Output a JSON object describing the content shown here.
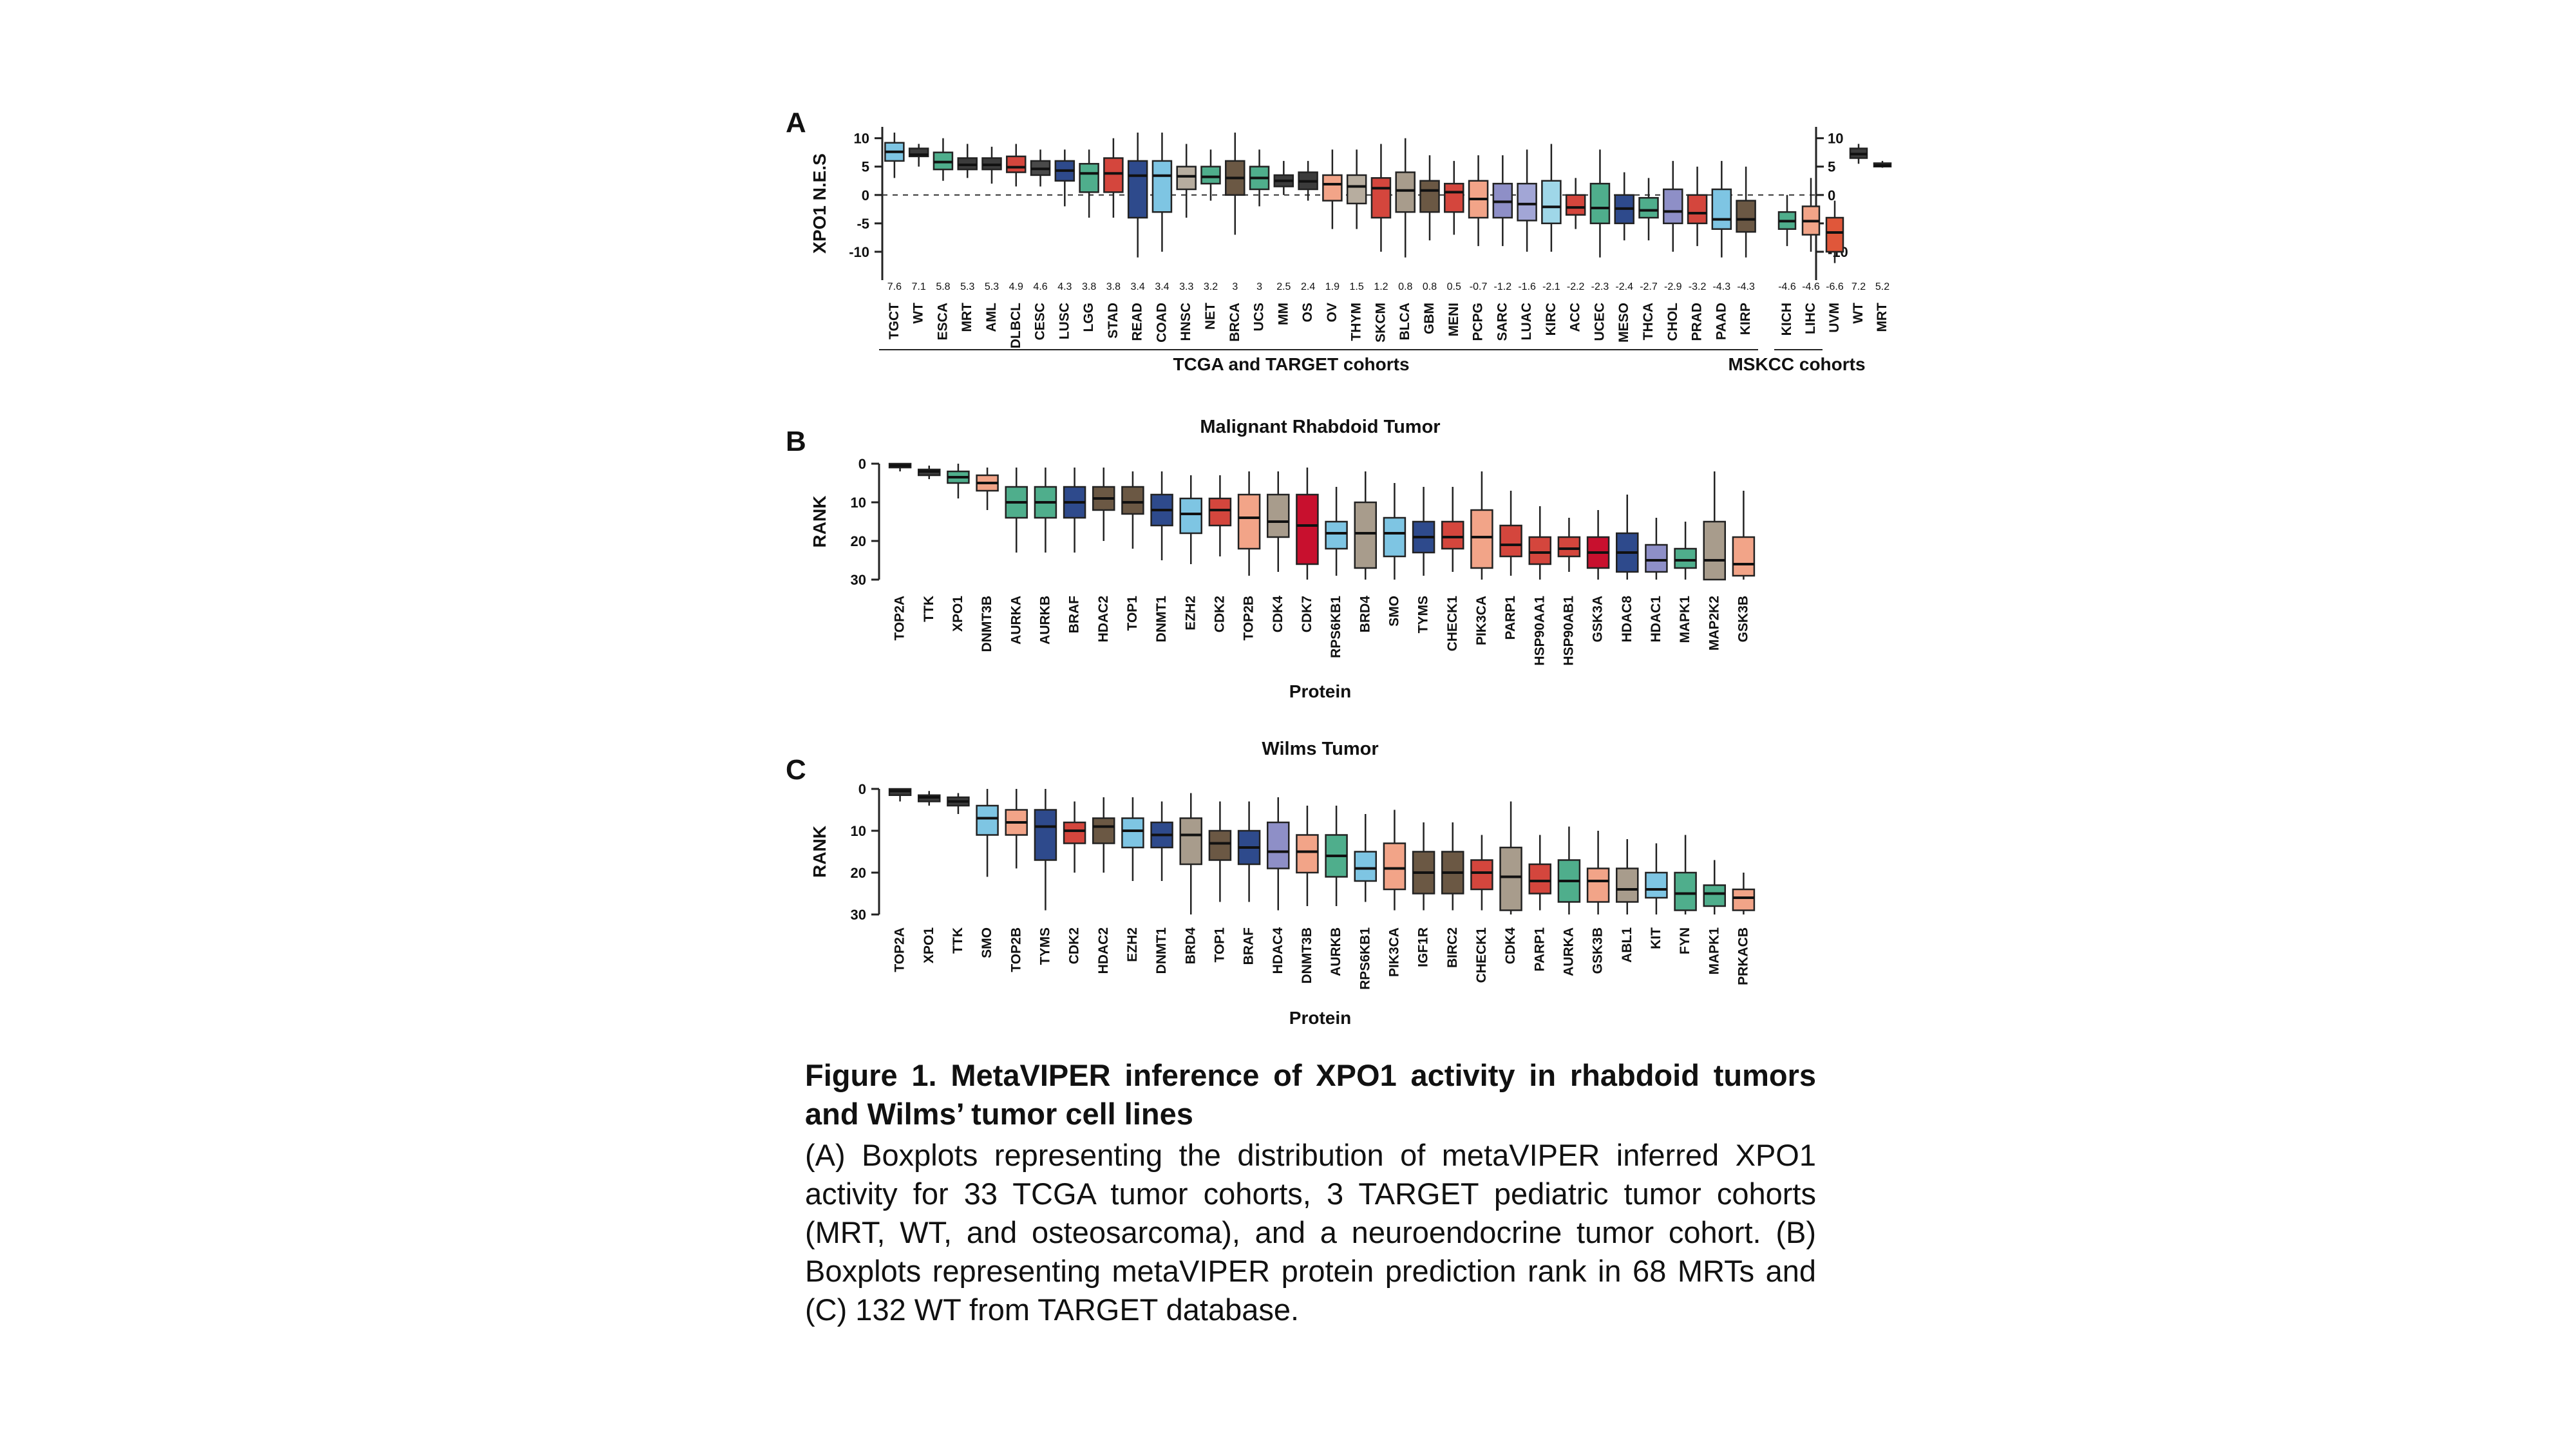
{
  "panels": {
    "A": {
      "letter": "A"
    },
    "B": {
      "letter": "B"
    },
    "C": {
      "letter": "C"
    }
  },
  "chart_data": [
    {
      "panel": "A",
      "type": "box",
      "title": "",
      "ylabel": "XPO1 N.E.S",
      "ylim": [
        -15,
        12
      ],
      "yticks": [
        10,
        5,
        0,
        -5,
        -10
      ],
      "reference_line": 0,
      "groups": [
        {
          "label": "TCGA and TARGET cohorts",
          "count": 36
        },
        {
          "label": "MSKCC cohorts",
          "count": 2
        }
      ],
      "categories": [
        "TGCT",
        "WT",
        "ESCA",
        "MRT",
        "AML",
        "DLBCL",
        "CESC",
        "LUSC",
        "LGG",
        "STAD",
        "READ",
        "COAD",
        "HNSC",
        "NET",
        "BRCA",
        "UCS",
        "MM",
        "OS",
        "OV",
        "THYM",
        "SKCM",
        "BLCA",
        "GBM",
        "MENI",
        "PCPG",
        "SARC",
        "LUAC",
        "KIRC",
        "ACC",
        "UCEC",
        "MESO",
        "THCA",
        "CHOL",
        "PRAD",
        "PAAD",
        "KIRP",
        "KICH",
        "LIHC",
        "UVM",
        "WT",
        "MRT"
      ],
      "medians_label": [
        "7.6",
        "7.1",
        "5.8",
        "5.3",
        "5.3",
        "4.9",
        "4.6",
        "4.3",
        "3.8",
        "3.8",
        "3.4",
        "3.4",
        "3.3",
        "3.2",
        "3",
        "3",
        "2.5",
        "2.4",
        "1.9",
        "1.5",
        "1.2",
        "0.8",
        "0.8",
        "0.5",
        "-0.7",
        "-1.2",
        "-1.6",
        "-2.1",
        "-2.2",
        "-2.3",
        "-2.4",
        "-2.7",
        "-2.9",
        "-3.2",
        "-4.3",
        "-4.3",
        "-4.6",
        "-4.6",
        "-6.6",
        "7.2",
        "5.2"
      ],
      "colors": [
        "#7ec5e3",
        "#3b3b3b",
        "#4fae8c",
        "#3b3b3b",
        "#3b3b3b",
        "#d4463d",
        "#4a4a4a",
        "#2e4a8c",
        "#4fae8c",
        "#d4463d",
        "#2e4a8c",
        "#7ec5e3",
        "#b7ad9f",
        "#4fae8c",
        "#6b5844",
        "#4fae8c",
        "#3b3b3b",
        "#3b3b3b",
        "#f2a488",
        "#b7ad9f",
        "#d4463d",
        "#a89c8c",
        "#6b5844",
        "#d4463d",
        "#f2a488",
        "#8e8fc7",
        "#a2a6d6",
        "#9fd7e8",
        "#d4463d",
        "#4fae8c",
        "#2e4a8c",
        "#4fae8c",
        "#8e8fc7",
        "#d4463d",
        "#7ec5e3",
        "#6b5844",
        "#4fae8c",
        "#f2a488",
        "#e0573a",
        "#3b3b3b",
        "#3b3b3b"
      ],
      "boxes": [
        {
          "q1": 6,
          "median": 7.6,
          "q3": 9.2,
          "wlo": 3,
          "whi": 11
        },
        {
          "q1": 6.8,
          "median": 7.1,
          "q3": 8.2,
          "wlo": 5,
          "whi": 9
        },
        {
          "q1": 4.5,
          "median": 5.8,
          "q3": 7.5,
          "wlo": 2.5,
          "whi": 10
        },
        {
          "q1": 4.5,
          "median": 5.3,
          "q3": 6.5,
          "wlo": 3,
          "whi": 9
        },
        {
          "q1": 4.5,
          "median": 5.3,
          "q3": 6.5,
          "wlo": 2,
          "whi": 8.5
        },
        {
          "q1": 4,
          "median": 4.9,
          "q3": 6.8,
          "wlo": 1.5,
          "whi": 9
        },
        {
          "q1": 3.5,
          "median": 4.6,
          "q3": 6,
          "wlo": 1.5,
          "whi": 8
        },
        {
          "q1": 2.5,
          "median": 4.3,
          "q3": 6,
          "wlo": -2,
          "whi": 8
        },
        {
          "q1": 0.5,
          "median": 3.8,
          "q3": 5.5,
          "wlo": -4,
          "whi": 8
        },
        {
          "q1": 0.5,
          "median": 3.8,
          "q3": 6.5,
          "wlo": -4,
          "whi": 10
        },
        {
          "q1": -4,
          "median": 3.4,
          "q3": 6,
          "wlo": -11,
          "whi": 11
        },
        {
          "q1": -3,
          "median": 3.4,
          "q3": 6,
          "wlo": -10,
          "whi": 11
        },
        {
          "q1": 1,
          "median": 3.3,
          "q3": 5,
          "wlo": -4,
          "whi": 9
        },
        {
          "q1": 2,
          "median": 3.2,
          "q3": 5,
          "wlo": -1,
          "whi": 8
        },
        {
          "q1": 0,
          "median": 3,
          "q3": 6,
          "wlo": -7,
          "whi": 11
        },
        {
          "q1": 1,
          "median": 3,
          "q3": 5,
          "wlo": -2,
          "whi": 8
        },
        {
          "q1": 1.5,
          "median": 2.5,
          "q3": 3.5,
          "wlo": 0,
          "whi": 6
        },
        {
          "q1": 1,
          "median": 2.4,
          "q3": 4,
          "wlo": -1,
          "whi": 6
        },
        {
          "q1": -1,
          "median": 1.9,
          "q3": 3.5,
          "wlo": -6,
          "whi": 8
        },
        {
          "q1": -1.5,
          "median": 1.5,
          "q3": 3.5,
          "wlo": -6,
          "whi": 8
        },
        {
          "q1": -4,
          "median": 1.2,
          "q3": 3,
          "wlo": -10,
          "whi": 9
        },
        {
          "q1": -3,
          "median": 0.8,
          "q3": 4,
          "wlo": -11,
          "whi": 10
        },
        {
          "q1": -3,
          "median": 0.8,
          "q3": 2.5,
          "wlo": -8,
          "whi": 7
        },
        {
          "q1": -3,
          "median": 0.5,
          "q3": 2,
          "wlo": -7,
          "whi": 6
        },
        {
          "q1": -4,
          "median": -0.7,
          "q3": 2.5,
          "wlo": -9,
          "whi": 7
        },
        {
          "q1": -4,
          "median": -1.2,
          "q3": 2,
          "wlo": -9,
          "whi": 7
        },
        {
          "q1": -4.5,
          "median": -1.6,
          "q3": 2,
          "wlo": -10,
          "whi": 8
        },
        {
          "q1": -5,
          "median": -2.1,
          "q3": 2.5,
          "wlo": -10,
          "whi": 9
        },
        {
          "q1": -3.5,
          "median": -2.2,
          "q3": 0,
          "wlo": -6,
          "whi": 3
        },
        {
          "q1": -5,
          "median": -2.3,
          "q3": 2,
          "wlo": -11,
          "whi": 8
        },
        {
          "q1": -5,
          "median": -2.4,
          "q3": 0,
          "wlo": -8,
          "whi": 4
        },
        {
          "q1": -4,
          "median": -2.7,
          "q3": -0.5,
          "wlo": -8,
          "whi": 3
        },
        {
          "q1": -5,
          "median": -2.9,
          "q3": 1,
          "wlo": -10,
          "whi": 6
        },
        {
          "q1": -5,
          "median": -3.2,
          "q3": 0,
          "wlo": -9,
          "whi": 5
        },
        {
          "q1": -6,
          "median": -4.3,
          "q3": 1,
          "wlo": -11,
          "whi": 6
        },
        {
          "q1": -6.5,
          "median": -4.3,
          "q3": -1,
          "wlo": -11,
          "whi": 5
        },
        {
          "q1": -6,
          "median": -4.6,
          "q3": -3,
          "wlo": -9,
          "whi": 0
        },
        {
          "q1": -7,
          "median": -4.6,
          "q3": -2,
          "wlo": -10,
          "whi": 3
        },
        {
          "q1": -10,
          "median": -6.6,
          "q3": -4,
          "wlo": -12,
          "whi": -1
        },
        {
          "q1": 6.5,
          "median": 7.2,
          "q3": 8.2,
          "wlo": 5.5,
          "whi": 9
        },
        {
          "q1": 5,
          "median": 5.2,
          "q3": 5.6,
          "wlo": 4.8,
          "whi": 6
        }
      ]
    },
    {
      "panel": "B",
      "type": "box",
      "title": "Malignant Rhabdoid Tumor",
      "xlabel": "Protein",
      "ylabel": "RANK",
      "ylim": [
        0,
        30
      ],
      "yticks": [
        0,
        10,
        20,
        30
      ],
      "inverted": true,
      "categories": [
        "TOP2A",
        "TTK",
        "XPO1",
        "DNMT3B",
        "AURKA",
        "AURKB",
        "BRAF",
        "HDAC2",
        "TOP1",
        "DNMT1",
        "EZH2",
        "CDK2",
        "TOP2B",
        "CDK4",
        "CDK7",
        "RPS6KB1",
        "BRD4",
        "SMO",
        "TYMS",
        "CHECK1",
        "PIK3CA",
        "PARP1",
        "HSP90AA1",
        "HSP90AB1",
        "GSK3A",
        "HDAC8",
        "HDAC1",
        "MAPK1",
        "MAP2K2",
        "GSK3B"
      ],
      "colors": [
        "#3b3b3b",
        "#3b3b3b",
        "#4fae8c",
        "#f2a488",
        "#4fae8c",
        "#4fae8c",
        "#2e4a8c",
        "#6b5844",
        "#6b5844",
        "#2e4a8c",
        "#7ec5e3",
        "#d4463d",
        "#f2a488",
        "#a89c8c",
        "#c8102e",
        "#7ec5e3",
        "#a89c8c",
        "#7ec5e3",
        "#2e4a8c",
        "#d4463d",
        "#f2a488",
        "#d4463d",
        "#d4463d",
        "#d4463d",
        "#c8102e",
        "#2e4a8c",
        "#8e8fc7",
        "#4fae8c",
        "#a89c8c",
        "#f2a488"
      ],
      "boxes": [
        {
          "q1": 0,
          "median": 0.5,
          "q3": 1,
          "wlo": 0,
          "whi": 2
        },
        {
          "q1": 1.5,
          "median": 2,
          "q3": 3,
          "wlo": 0.5,
          "whi": 4
        },
        {
          "q1": 2,
          "median": 3.5,
          "q3": 5,
          "wlo": 0,
          "whi": 9
        },
        {
          "q1": 3,
          "median": 5,
          "q3": 7,
          "wlo": 1,
          "whi": 12
        },
        {
          "q1": 6,
          "median": 10,
          "q3": 14,
          "wlo": 1,
          "whi": 23
        },
        {
          "q1": 6,
          "median": 10,
          "q3": 14,
          "wlo": 1,
          "whi": 23
        },
        {
          "q1": 6,
          "median": 10,
          "q3": 14,
          "wlo": 1,
          "whi": 23
        },
        {
          "q1": 6,
          "median": 9,
          "q3": 12,
          "wlo": 1,
          "whi": 20
        },
        {
          "q1": 6,
          "median": 10,
          "q3": 13,
          "wlo": 2,
          "whi": 22
        },
        {
          "q1": 8,
          "median": 12,
          "q3": 16,
          "wlo": 2,
          "whi": 25
        },
        {
          "q1": 9,
          "median": 13,
          "q3": 18,
          "wlo": 3,
          "whi": 26
        },
        {
          "q1": 9,
          "median": 12,
          "q3": 16,
          "wlo": 3,
          "whi": 24
        },
        {
          "q1": 8,
          "median": 14,
          "q3": 22,
          "wlo": 2,
          "whi": 29
        },
        {
          "q1": 8,
          "median": 15,
          "q3": 19,
          "wlo": 2,
          "whi": 28
        },
        {
          "q1": 8,
          "median": 16,
          "q3": 26,
          "wlo": 1,
          "whi": 30
        },
        {
          "q1": 15,
          "median": 18,
          "q3": 22,
          "wlo": 6,
          "whi": 29
        },
        {
          "q1": 10,
          "median": 18,
          "q3": 27,
          "wlo": 2,
          "whi": 30
        },
        {
          "q1": 14,
          "median": 18,
          "q3": 24,
          "wlo": 5,
          "whi": 30
        },
        {
          "q1": 15,
          "median": 19,
          "q3": 23,
          "wlo": 6,
          "whi": 29
        },
        {
          "q1": 15,
          "median": 19,
          "q3": 22,
          "wlo": 6,
          "whi": 28
        },
        {
          "q1": 12,
          "median": 19,
          "q3": 27,
          "wlo": 2,
          "whi": 30
        },
        {
          "q1": 16,
          "median": 21,
          "q3": 24,
          "wlo": 7,
          "whi": 29
        },
        {
          "q1": 19,
          "median": 23,
          "q3": 26,
          "wlo": 11,
          "whi": 30
        },
        {
          "q1": 19,
          "median": 22,
          "q3": 24,
          "wlo": 14,
          "whi": 28
        },
        {
          "q1": 19,
          "median": 23,
          "q3": 27,
          "wlo": 12,
          "whi": 30
        },
        {
          "q1": 18,
          "median": 23,
          "q3": 28,
          "wlo": 8,
          "whi": 30
        },
        {
          "q1": 21,
          "median": 25,
          "q3": 28,
          "wlo": 14,
          "whi": 30
        },
        {
          "q1": 22,
          "median": 25,
          "q3": 27,
          "wlo": 15,
          "whi": 30
        },
        {
          "q1": 15,
          "median": 25,
          "q3": 30,
          "wlo": 2,
          "whi": 30
        },
        {
          "q1": 19,
          "median": 26,
          "q3": 29,
          "wlo": 7,
          "whi": 30
        }
      ]
    },
    {
      "panel": "C",
      "type": "box",
      "title": "Wilms Tumor",
      "xlabel": "Protein",
      "ylabel": "RANK",
      "ylim": [
        0,
        30
      ],
      "yticks": [
        0,
        10,
        20,
        30
      ],
      "inverted": true,
      "categories": [
        "TOP2A",
        "XPO1",
        "TTK",
        "SMO",
        "TOP2B",
        "TYMS",
        "CDK2",
        "HDAC2",
        "EZH2",
        "DNMT1",
        "BRD4",
        "TOP1",
        "BRAF",
        "HDAC4",
        "DNMT3B",
        "AURKB",
        "RPS6KB1",
        "PIK3CA",
        "IGF1R",
        "BIRC2",
        "CHECK1",
        "CDK4",
        "PARP1",
        "AURKA",
        "GSK3B",
        "ABL1",
        "KIT",
        "FYN",
        "MAPK1",
        "PRKACB"
      ],
      "colors": [
        "#3b3b3b",
        "#3b3b3b",
        "#3b3b3b",
        "#7ec5e3",
        "#f2a488",
        "#2e4a8c",
        "#d4463d",
        "#6b5844",
        "#7ec5e3",
        "#2e4a8c",
        "#a89c8c",
        "#6b5844",
        "#2e4a8c",
        "#8e8fc7",
        "#f2a488",
        "#4fae8c",
        "#7ec5e3",
        "#f2a488",
        "#6b5844",
        "#6b5844",
        "#d4463d",
        "#a89c8c",
        "#d4463d",
        "#4fae8c",
        "#f2a488",
        "#a89c8c",
        "#7ec5e3",
        "#4fae8c",
        "#4fae8c",
        "#f2a488"
      ],
      "boxes": [
        {
          "q1": 0,
          "median": 0.5,
          "q3": 1.5,
          "wlo": 0,
          "whi": 3
        },
        {
          "q1": 1.5,
          "median": 2,
          "q3": 3,
          "wlo": 0.5,
          "whi": 4
        },
        {
          "q1": 2,
          "median": 3,
          "q3": 4,
          "wlo": 1,
          "whi": 6
        },
        {
          "q1": 4,
          "median": 7,
          "q3": 11,
          "wlo": 0,
          "whi": 21
        },
        {
          "q1": 5,
          "median": 8,
          "q3": 11,
          "wlo": 0,
          "whi": 19
        },
        {
          "q1": 5,
          "median": 9,
          "q3": 17,
          "wlo": 0,
          "whi": 29
        },
        {
          "q1": 8,
          "median": 10,
          "q3": 13,
          "wlo": 3,
          "whi": 20
        },
        {
          "q1": 7,
          "median": 9,
          "q3": 13,
          "wlo": 2,
          "whi": 20
        },
        {
          "q1": 7,
          "median": 10,
          "q3": 14,
          "wlo": 2,
          "whi": 22
        },
        {
          "q1": 8,
          "median": 11,
          "q3": 14,
          "wlo": 3,
          "whi": 22
        },
        {
          "q1": 7,
          "median": 11,
          "q3": 18,
          "wlo": 1,
          "whi": 30
        },
        {
          "q1": 10,
          "median": 13,
          "q3": 17,
          "wlo": 3,
          "whi": 27
        },
        {
          "q1": 10,
          "median": 14,
          "q3": 18,
          "wlo": 3,
          "whi": 27
        },
        {
          "q1": 8,
          "median": 15,
          "q3": 19,
          "wlo": 2,
          "whi": 29
        },
        {
          "q1": 11,
          "median": 15,
          "q3": 20,
          "wlo": 4,
          "whi": 28
        },
        {
          "q1": 11,
          "median": 16,
          "q3": 21,
          "wlo": 4,
          "whi": 28
        },
        {
          "q1": 15,
          "median": 19,
          "q3": 22,
          "wlo": 6,
          "whi": 27
        },
        {
          "q1": 13,
          "median": 19,
          "q3": 24,
          "wlo": 5,
          "whi": 29
        },
        {
          "q1": 15,
          "median": 20,
          "q3": 25,
          "wlo": 8,
          "whi": 29
        },
        {
          "q1": 15,
          "median": 20,
          "q3": 25,
          "wlo": 8,
          "whi": 29
        },
        {
          "q1": 17,
          "median": 20,
          "q3": 24,
          "wlo": 11,
          "whi": 29
        },
        {
          "q1": 14,
          "median": 21,
          "q3": 29,
          "wlo": 3,
          "whi": 30
        },
        {
          "q1": 18,
          "median": 22,
          "q3": 25,
          "wlo": 11,
          "whi": 29
        },
        {
          "q1": 17,
          "median": 22,
          "q3": 27,
          "wlo": 9,
          "whi": 30
        },
        {
          "q1": 19,
          "median": 22,
          "q3": 27,
          "wlo": 10,
          "whi": 30
        },
        {
          "q1": 19,
          "median": 24,
          "q3": 27,
          "wlo": 12,
          "whi": 30
        },
        {
          "q1": 20,
          "median": 24,
          "q3": 26,
          "wlo": 13,
          "whi": 30
        },
        {
          "q1": 20,
          "median": 25,
          "q3": 29,
          "wlo": 11,
          "whi": 30
        },
        {
          "q1": 23,
          "median": 25,
          "q3": 28,
          "wlo": 17,
          "whi": 30
        },
        {
          "q1": 24,
          "median": 26,
          "q3": 29,
          "wlo": 20,
          "whi": 30
        }
      ]
    }
  ],
  "caption": {
    "title": "Figure 1. MetaVIPER inference of XPO1 activity in rhabdoid tumors and Wilms’ tumor cell lines",
    "body": "(A) Boxplots representing the distribution of metaVIPER inferred XPO1 activity for 33 TCGA tumor cohorts, 3 TARGET pediatric tumor cohorts (MRT, WT, and osteosarcoma), and a neuroendocrine tumor cohort. (B) Boxplots representing metaVIPER protein prediction rank in 68 MRTs and (C) 132 WT from TARGET database."
  }
}
